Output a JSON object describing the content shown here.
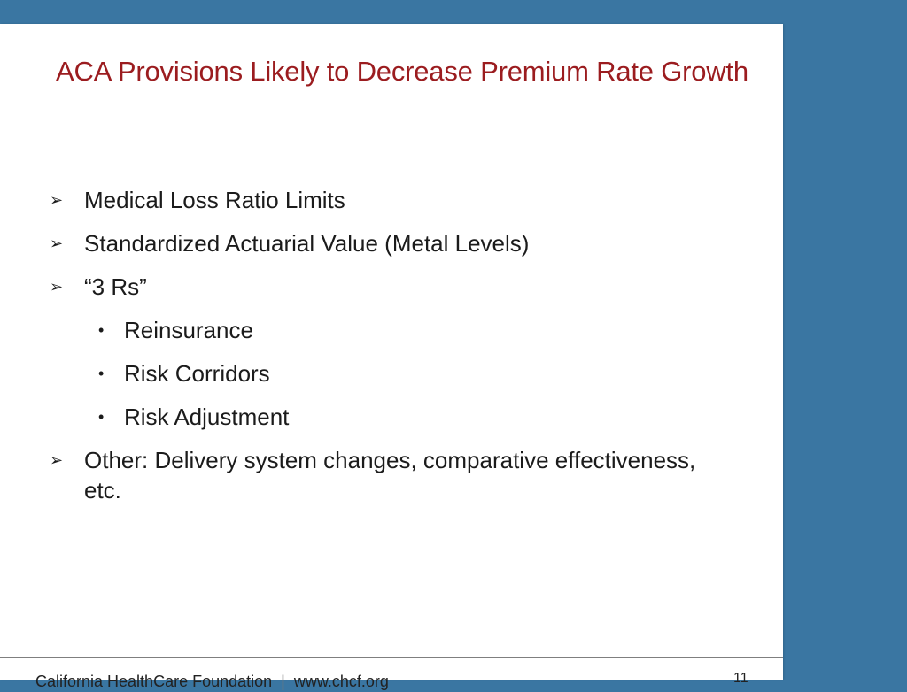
{
  "slide": {
    "title": "ACA Provisions Likely to Decrease Premium Rate Growth",
    "bullets": [
      {
        "marker_icon": "arrow-bullet-icon",
        "text": "Medical Loss Ratio Limits"
      },
      {
        "marker_icon": "arrow-bullet-icon",
        "text": "Standardized Actuarial Value (Metal Levels)"
      },
      {
        "marker_icon": "arrow-bullet-icon",
        "text": "“3 Rs”"
      },
      {
        "marker_icon": "dot-bullet-icon",
        "text": "Reinsurance"
      },
      {
        "marker_icon": "dot-bullet-icon",
        "text": "Risk Corridors"
      },
      {
        "marker_icon": "dot-bullet-icon",
        "text": "Risk Adjustment"
      },
      {
        "marker_icon": "arrow-bullet-icon",
        "text": "Other: Delivery system changes, comparative effectiveness, etc."
      }
    ]
  },
  "footer": {
    "organization": "California HealthCare Foundation",
    "separator": "|",
    "website": "www.chcf.org",
    "page_number": "11"
  },
  "colors": {
    "background": "#3a76a2",
    "slide": "#ffffff",
    "title": "#9b1c1f",
    "text": "#1b1b1b"
  }
}
